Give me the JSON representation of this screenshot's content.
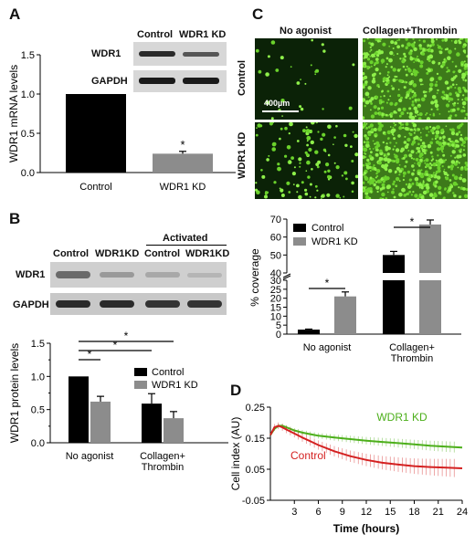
{
  "panels": {
    "A": "A",
    "B": "B",
    "C": "C",
    "D": "D"
  },
  "colors": {
    "black": "#000000",
    "gray": "#8c8c8c",
    "red": "#d42020",
    "green": "#4caf1a",
    "fluor": "#7be23a"
  },
  "panelA": {
    "blot": {
      "columns": [
        "Control",
        "WDR1 KD"
      ],
      "rows": [
        "WDR1",
        "GAPDH"
      ]
    }
  },
  "panelB": {
    "blot": {
      "columns": [
        "Control",
        "WDR1KD",
        "Control",
        "WDR1KD"
      ],
      "group_label": "Activated",
      "rows": [
        "WDR1",
        "GAPDH"
      ]
    }
  },
  "panelC": {
    "columns": [
      "No agonist",
      "Collagen+Thrombin"
    ],
    "rows": [
      "Control",
      "WDR1 KD"
    ],
    "scale_bar": "400µm"
  },
  "chart_data": [
    {
      "id": "A",
      "type": "bar",
      "categories": [
        "Control",
        "WDR1 KD"
      ],
      "values": [
        1.0,
        0.24
      ],
      "errors": [
        0,
        0.03
      ],
      "colors": [
        "#000000",
        "#8c8c8c"
      ],
      "ylabel": "WDR1 mRNA levels",
      "ylim": [
        0,
        1.5
      ],
      "yticks": [
        "0.0",
        "0.5",
        "1.0",
        "1.5"
      ],
      "annotations": [
        "*"
      ]
    },
    {
      "id": "B",
      "type": "bar",
      "categories": [
        "No agonist",
        "Collagen+\nThrombin"
      ],
      "series": [
        {
          "name": "Control",
          "color": "#000000",
          "values": [
            1.0,
            0.59
          ],
          "errors": [
            0,
            0.15
          ]
        },
        {
          "name": "WDR1 KD",
          "color": "#8c8c8c",
          "values": [
            0.62,
            0.37
          ],
          "errors": [
            0.08,
            0.1
          ]
        }
      ],
      "ylabel": "WDR1 protein levels",
      "ylim": [
        0,
        1.5
      ],
      "yticks": [
        "0.0",
        "0.25",
        "0.5",
        "0.75",
        "1.0",
        "1.25",
        "1.5"
      ],
      "significance": [
        "*",
        "*",
        "*"
      ]
    },
    {
      "id": "C",
      "type": "bar",
      "categories": [
        "No agonist",
        "Collagen+\nThrombin"
      ],
      "series": [
        {
          "name": "Control",
          "color": "#000000",
          "values": [
            2.5,
            50
          ],
          "errors": [
            0.3,
            2
          ]
        },
        {
          "name": "WDR1 KD",
          "color": "#8c8c8c",
          "values": [
            21,
            67
          ],
          "errors": [
            2.5,
            2.5
          ]
        }
      ],
      "ylabel": "% coverage",
      "ylim": [
        0,
        70
      ],
      "axis_break": [
        30,
        40
      ],
      "yticks": [
        "0",
        "5",
        "10",
        "15",
        "20",
        "25",
        "30",
        "40",
        "50",
        "60",
        "70"
      ],
      "significance": [
        "*",
        "*"
      ]
    },
    {
      "id": "D",
      "type": "line",
      "xlabel": "Time (hours)",
      "ylabel": "Cell index (AU)",
      "xlim": [
        0,
        24
      ],
      "ylim": [
        -0.05,
        0.25
      ],
      "xticks": [
        "3",
        "6",
        "9",
        "12",
        "15",
        "18",
        "21",
        "24"
      ],
      "yticks": [
        "-0.05",
        "0.05",
        "0.15",
        "0.25"
      ],
      "series": [
        {
          "name": "WDR1 KD",
          "color": "#4caf1a",
          "x": [
            0,
            0.5,
            1,
            1.5,
            2,
            3,
            4,
            5,
            6,
            8,
            10,
            12,
            14,
            16,
            18,
            20,
            22,
            24
          ],
          "y": [
            0.16,
            0.18,
            0.19,
            0.19,
            0.185,
            0.175,
            0.168,
            0.163,
            0.158,
            0.152,
            0.147,
            0.142,
            0.138,
            0.134,
            0.13,
            0.126,
            0.123,
            0.12
          ],
          "err": 0.015
        },
        {
          "name": "Control",
          "color": "#d42020",
          "x": [
            0,
            0.5,
            1,
            1.5,
            2,
            3,
            4,
            5,
            6,
            8,
            10,
            12,
            14,
            16,
            18,
            20,
            22,
            24
          ],
          "y": [
            0.16,
            0.185,
            0.19,
            0.185,
            0.178,
            0.165,
            0.152,
            0.14,
            0.128,
            0.108,
            0.092,
            0.08,
            0.071,
            0.065,
            0.06,
            0.057,
            0.055,
            0.053
          ],
          "err": 0.025
        }
      ]
    }
  ]
}
